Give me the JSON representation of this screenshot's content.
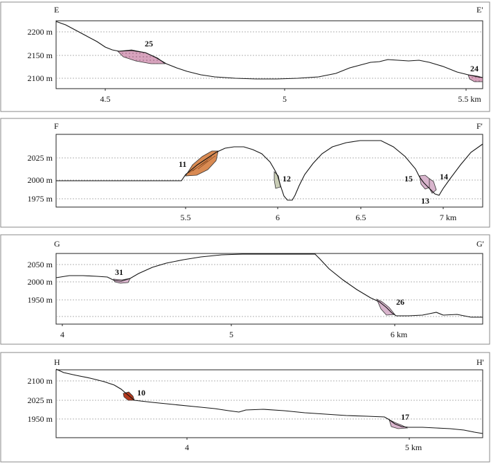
{
  "colors": {
    "pink_dotted": "#d7a3bd",
    "pink": "#d8b4cc",
    "orange": "#d98a52",
    "grey_green": "#c9cdb6",
    "red_brown": "#b33a1e"
  },
  "panels": [
    {
      "start_label": "E",
      "end_label": "E'",
      "y_ticks": [
        "2200 m",
        "2150 m",
        "2100 m"
      ],
      "x_ticks": [
        "4.5",
        "5",
        "5.5 km"
      ],
      "deposits": [
        {
          "number": "25",
          "color": "pink_dotted"
        },
        {
          "number": "24",
          "color": "pink_dotted"
        }
      ]
    },
    {
      "start_label": "F",
      "end_label": "F'",
      "y_ticks": [
        "2025 m",
        "2000 m",
        "1975 m"
      ],
      "x_ticks": [
        "5.5",
        "6",
        "6.5",
        "7 km"
      ],
      "deposits": [
        {
          "number": "11",
          "color": "orange"
        },
        {
          "number": "12",
          "color": "grey_green"
        },
        {
          "number": "15",
          "color": "pink"
        },
        {
          "number": "14",
          "color": "pink"
        },
        {
          "number": "13",
          "color": "pink"
        }
      ]
    },
    {
      "start_label": "G",
      "end_label": "G'",
      "y_ticks": [
        "2050 m",
        "2000 m",
        "1950 m"
      ],
      "x_ticks": [
        "4",
        "5",
        "6 km"
      ],
      "deposits": [
        {
          "number": "31",
          "color": "pink"
        },
        {
          "number": "26",
          "color": "pink"
        }
      ]
    },
    {
      "start_label": "H",
      "end_label": "H'",
      "y_ticks": [
        "2100 m",
        "2025 m",
        "1950 m"
      ],
      "x_ticks": [
        "4",
        "5 km"
      ],
      "deposits": [
        {
          "number": "10",
          "color": "red_brown"
        },
        {
          "number": "17",
          "color": "pink"
        }
      ]
    }
  ]
}
